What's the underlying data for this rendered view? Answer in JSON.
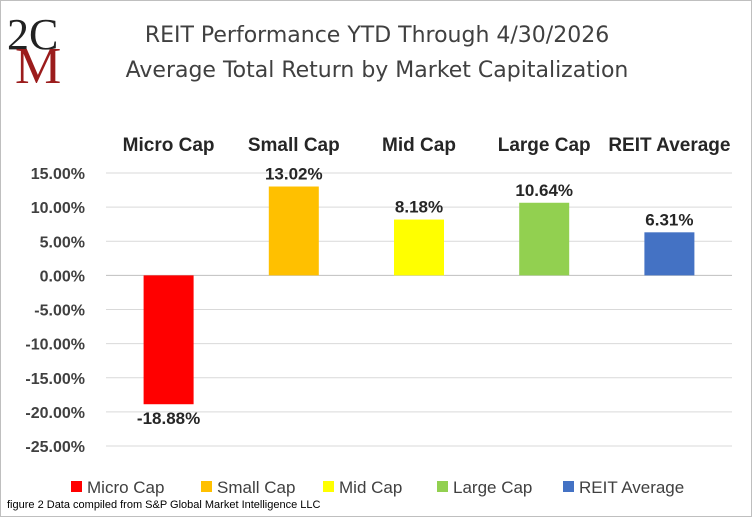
{
  "logo": {
    "text_top": "2C",
    "text_bottom": "M"
  },
  "chart_data": {
    "type": "bar",
    "title": "REIT Performance YTD Through 4/30/2026",
    "subtitle": "Average Total Return by Market Capitalization",
    "categories": [
      "Micro Cap",
      "Small Cap",
      "Mid Cap",
      "Large Cap",
      "REIT Average"
    ],
    "values": [
      -18.88,
      13.02,
      8.18,
      10.64,
      6.31
    ],
    "data_labels": [
      "-18.88%",
      "13.02%",
      "8.18%",
      "10.64%",
      "6.31%"
    ],
    "colors": [
      "#ff0000",
      "#ffc000",
      "#ffff00",
      "#92d050",
      "#4472c4"
    ],
    "y_ticks": [
      15,
      10,
      5,
      0,
      -5,
      -10,
      -15,
      -20,
      -25
    ],
    "y_tick_labels": [
      "15.00%",
      "10.00%",
      "5.00%",
      "0.00%",
      "-5.00%",
      "-10.00%",
      "-15.00%",
      "-20.00%",
      "-25.00%"
    ],
    "ylim": [
      -25,
      15
    ],
    "grid": true,
    "category_labels_position": "top",
    "legend_position": "bottom"
  },
  "footnote": "figure 2 Data compiled from S&P Global Market Intelligence LLC"
}
